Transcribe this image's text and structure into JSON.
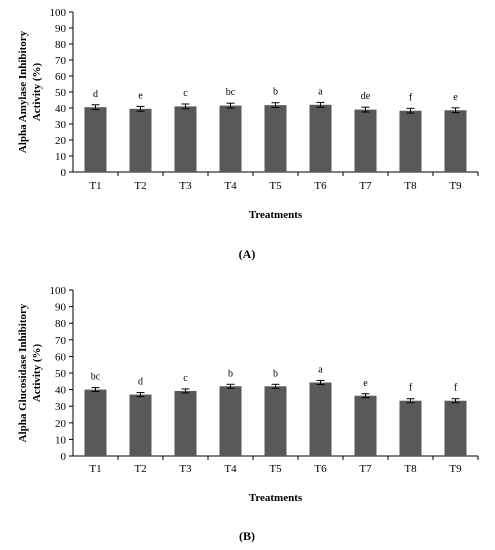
{
  "bar_color": "#595959",
  "chart_data": [
    {
      "type": "bar",
      "panel_label": "(A)",
      "xlabel": "Treatments",
      "ylabel": "Alpha Amylase Inhibitory Activity (%)",
      "ylim": [
        0,
        100
      ],
      "yticks": [
        "0",
        "10",
        "20",
        "30",
        "40",
        "50",
        "60",
        "70",
        "80",
        "90",
        "100"
      ],
      "categories": [
        "T1",
        "T2",
        "T3",
        "T4",
        "T5",
        "T6",
        "T7",
        "T8",
        "T9"
      ],
      "values": [
        40.5,
        39.5,
        41.0,
        41.5,
        41.8,
        42.0,
        39.0,
        38.3,
        38.6
      ],
      "errors": [
        1.5,
        1.5,
        1.5,
        1.5,
        1.5,
        1.5,
        1.5,
        1.5,
        1.5
      ],
      "labels": [
        "d",
        "e",
        "c",
        "bc",
        "b",
        "a",
        "de",
        "f",
        "e"
      ],
      "grid": false
    },
    {
      "type": "bar",
      "panel_label": "(B)",
      "xlabel": "Treatments",
      "ylabel": "Alpha Glucosidase Inhibitory Activity (%)",
      "ylim": [
        0,
        100
      ],
      "yticks": [
        "0",
        "10",
        "20",
        "30",
        "40",
        "50",
        "60",
        "70",
        "80",
        "90",
        "100"
      ],
      "categories": [
        "T1",
        "T2",
        "T3",
        "T4",
        "T5",
        "T6",
        "T7",
        "T8",
        "T9"
      ],
      "values": [
        40.0,
        37.0,
        39.2,
        42.0,
        42.0,
        44.3,
        36.3,
        33.3,
        33.3
      ],
      "errors": [
        1.2,
        1.2,
        1.2,
        1.2,
        1.2,
        1.2,
        1.2,
        1.2,
        1.2
      ],
      "labels": [
        "bc",
        "d",
        "c",
        "b",
        "b",
        "a",
        "e",
        "f",
        "f"
      ],
      "grid": false
    }
  ]
}
